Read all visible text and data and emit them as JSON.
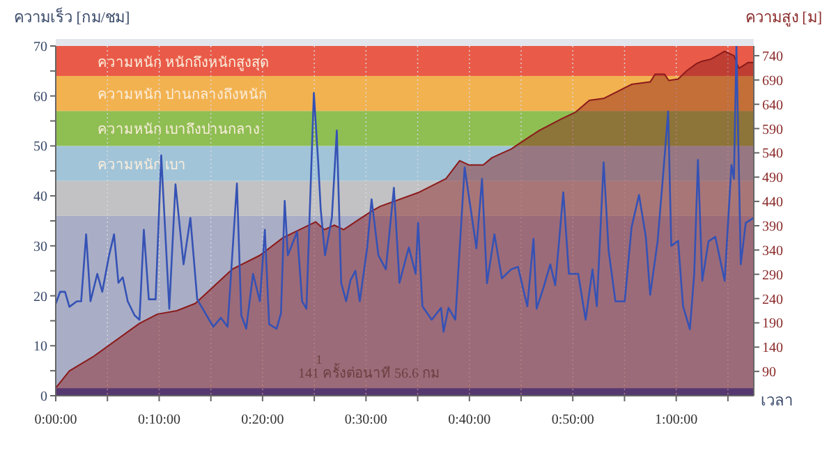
{
  "chart_data": {
    "type": "line",
    "ylabel": "ความเร็ว [กม/ชม]",
    "y2label": "ความสูง [ม]",
    "xlabel": "เวลา",
    "xlim": [
      0,
      1.125
    ],
    "xticks": [
      {
        "value": 0,
        "label": "0:00:00"
      },
      {
        "value": 0.0833,
        "label": null
      },
      {
        "value": 0.1667,
        "label": "0:10:00"
      },
      {
        "value": 0.25,
        "label": null
      },
      {
        "value": 0.3333,
        "label": "0:20:00"
      },
      {
        "value": 0.4167,
        "label": null
      },
      {
        "value": 0.5,
        "label": "0:30:00"
      },
      {
        "value": 0.5833,
        "label": null
      },
      {
        "value": 0.6667,
        "label": "0:40:00"
      },
      {
        "value": 0.75,
        "label": null
      },
      {
        "value": 0.8333,
        "label": "0:50:00"
      },
      {
        "value": 0.9167,
        "label": null
      },
      {
        "value": 1,
        "label": "1:00:00"
      },
      {
        "value": 1.0833,
        "label": null
      }
    ],
    "ylim": [
      0,
      70
    ],
    "yticks": [
      0,
      {
        "value": 5,
        "label": null
      },
      10,
      {
        "value": 15,
        "label": null
      },
      20,
      {
        "value": 25,
        "label": null
      },
      30,
      {
        "value": 35,
        "label": null
      },
      40,
      {
        "value": 45,
        "label": null
      },
      50,
      {
        "value": 55,
        "label": null
      },
      60,
      {
        "value": 65,
        "label": null
      },
      70
    ],
    "y2lim": [
      40,
      760
    ],
    "y2ticks": [
      90,
      140,
      190,
      240,
      290,
      340,
      390,
      440,
      490,
      540,
      590,
      640,
      690,
      740
    ],
    "grid": "x",
    "bands": [
      {
        "axis": "y",
        "from": 0,
        "to": 36,
        "color": "#a9aec6"
      },
      {
        "axis": "y",
        "from": 36,
        "to": 43,
        "color": "#c2c2c4"
      },
      {
        "axis": "y",
        "from": 43,
        "to": 50,
        "color": "#a1c4d8",
        "label": "ความหนัก เบา"
      },
      {
        "axis": "y",
        "from": 50,
        "to": 57,
        "color": "#8fbe52",
        "label": "ความหนัก เบาถึงปานกลาง"
      },
      {
        "axis": "y",
        "from": 57,
        "to": 64,
        "color": "#f2b250",
        "label": "ความหนัก ปานกลางถึงหนัก"
      },
      {
        "axis": "y",
        "from": 64,
        "to": 70,
        "color": "#e95b48",
        "label": "ความหนัก หนักถึงหนักสูงสุด"
      },
      {
        "axis": "y",
        "from": 0,
        "to": 1.5,
        "color": "#2b50b8"
      }
    ],
    "annotations": [
      "1",
      "141 ครั้งต่อนาที 56.6 กม"
    ],
    "series": [
      {
        "type": "area",
        "axis": "y2",
        "color": "#8b1a1a",
        "x": [
          0,
          0.022,
          0.06,
          0.135,
          0.164,
          0.195,
          0.225,
          0.285,
          0.329,
          0.366,
          0.419,
          0.433,
          0.449,
          0.464,
          0.509,
          0.523,
          0.584,
          0.629,
          0.651,
          0.666,
          0.689,
          0.703,
          0.734,
          0.779,
          0.815,
          0.838,
          0.86,
          0.883,
          0.928,
          0.958,
          0.966,
          0.981,
          0.988,
          1.003,
          1.017,
          1.033,
          1.04,
          1.056,
          1.078,
          1.093,
          1.101,
          1.116,
          1.125
        ],
        "values": [
          56,
          91,
          120,
          189,
          208,
          215,
          230,
          301,
          329,
          365,
          398,
          382,
          391,
          382,
          420,
          430,
          458,
          487,
          524,
          515,
          515,
          530,
          548,
          586,
          610,
          624,
          648,
          652,
          681,
          686,
          702,
          702,
          689,
          692,
          709,
          724,
          728,
          733,
          749,
          740,
          714,
          726,
          726
        ]
      },
      {
        "color": "#3552b5",
        "x": [
          0,
          0.007,
          0.015,
          0.022,
          0.034,
          0.041,
          0.049,
          0.056,
          0.067,
          0.075,
          0.086,
          0.094,
          0.101,
          0.108,
          0.116,
          0.127,
          0.135,
          0.142,
          0.15,
          0.161,
          0.17,
          0.183,
          0.193,
          0.206,
          0.217,
          0.228,
          0.243,
          0.254,
          0.266,
          0.277,
          0.292,
          0.299,
          0.307,
          0.318,
          0.329,
          0.337,
          0.344,
          0.356,
          0.363,
          0.369,
          0.374,
          0.389,
          0.397,
          0.404,
          0.416,
          0.423,
          0.427,
          0.434,
          0.445,
          0.453,
          0.46,
          0.468,
          0.475,
          0.483,
          0.49,
          0.502,
          0.509,
          0.52,
          0.532,
          0.545,
          0.554,
          0.569,
          0.58,
          0.584,
          0.591,
          0.606,
          0.621,
          0.625,
          0.633,
          0.644,
          0.659,
          0.678,
          0.687,
          0.695,
          0.707,
          0.719,
          0.734,
          0.745,
          0.76,
          0.77,
          0.775,
          0.786,
          0.797,
          0.805,
          0.818,
          0.827,
          0.842,
          0.854,
          0.865,
          0.872,
          0.883,
          0.891,
          0.902,
          0.917,
          0.928,
          0.94,
          0.951,
          0.958,
          0.97,
          0.979,
          0.987,
          0.992,
          1.003,
          1.011,
          1.022,
          1.029,
          1.035,
          1.042,
          1.052,
          1.063,
          1.078,
          1.089,
          1.093,
          1.097,
          1.104,
          1.112,
          1.125
        ],
        "values": [
          18.4,
          20.8,
          20.8,
          17.8,
          18.9,
          18.9,
          32.3,
          18.9,
          24.4,
          20.8,
          28.1,
          32.3,
          22.6,
          23.7,
          18.9,
          16.1,
          15.2,
          33.2,
          19.3,
          19.3,
          48.1,
          17.4,
          42.3,
          26.3,
          35.6,
          19.3,
          16.1,
          13.8,
          15.6,
          13.8,
          42.5,
          16.1,
          13.4,
          24.4,
          18.9,
          33.2,
          14.3,
          13.4,
          16.5,
          39,
          28.1,
          32.8,
          18.9,
          17.4,
          60.6,
          46.7,
          37.4,
          28.1,
          35.6,
          53.1,
          22.6,
          18.9,
          23.1,
          25,
          18.9,
          29.7,
          39.3,
          28.1,
          25.3,
          41.6,
          22.6,
          29.7,
          24.4,
          34.6,
          17.9,
          15.2,
          17.6,
          12.8,
          17.6,
          15.2,
          45.7,
          29.5,
          43.4,
          22.5,
          32.3,
          23.5,
          25.3,
          25.8,
          17.9,
          31.4,
          17.4,
          21.6,
          26.3,
          22.1,
          40.7,
          24.4,
          24.4,
          15.2,
          25.3,
          17.9,
          46.7,
          29.1,
          18.9,
          18.9,
          33.7,
          40.2,
          31.8,
          20.2,
          30.9,
          44.4,
          56.9,
          30,
          31,
          17.9,
          13.3,
          24.4,
          47.2,
          23,
          30.9,
          31.8,
          23,
          46.2,
          43.4,
          70,
          26.3,
          34.6,
          35.6
        ]
      }
    ]
  }
}
